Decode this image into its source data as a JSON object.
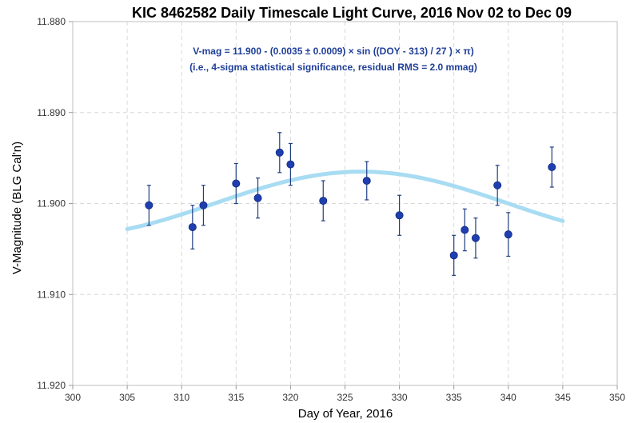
{
  "chart_data": {
    "type": "scatter",
    "title": "KIC 8462582 Daily Timescale Light Curve, 2016 Nov 02 to Dec 09",
    "xlabel": "Day of Year, 2016",
    "ylabel": "V-Magnitude (BLG Cal'n)",
    "xlim": [
      300,
      350
    ],
    "ylim": [
      11.88,
      11.92
    ],
    "y_inverted": true,
    "grid": true,
    "x_ticks": [
      "300",
      "305",
      "310",
      "315",
      "320",
      "325",
      "330",
      "335",
      "340",
      "345",
      "350"
    ],
    "y_ticks": [
      "11.880",
      "11.890",
      "11.900",
      "11.910",
      "11.920"
    ],
    "annotations": [
      "V-mag = 11.900 - (0.0035 ± 0.0009) × sin ((DOY - 313) / 27 ) × π)",
      "(i.e., 4-sigma statistical significance, residual RMS = 2.0 mmag)"
    ],
    "colors": {
      "points": "#1f3fb0",
      "fit_curve": "#a8dcf2",
      "error_bars": "#1f3f80",
      "annotation": "#1f3f99"
    },
    "fit": {
      "x_start": 305,
      "x_end": 345,
      "offset": 11.9,
      "amplitude": 0.0035,
      "phase": 313,
      "period": 54
    },
    "series": [
      {
        "x": [
          307,
          311,
          312,
          315,
          317,
          319,
          320,
          323,
          327,
          330,
          335,
          336,
          337,
          339,
          340,
          344
        ],
        "y": [
          11.9002,
          11.9026,
          11.9002,
          11.8978,
          11.8994,
          11.8944,
          11.8957,
          11.8997,
          11.8975,
          11.9013,
          11.9057,
          11.9029,
          11.9038,
          11.898,
          11.9034,
          11.896
        ],
        "err": [
          0.0022,
          0.0024,
          0.0022,
          0.0022,
          0.0022,
          0.0022,
          0.0023,
          0.0022,
          0.0021,
          0.0022,
          0.0022,
          0.0023,
          0.0022,
          0.0022,
          0.0024,
          0.0022
        ]
      }
    ]
  }
}
